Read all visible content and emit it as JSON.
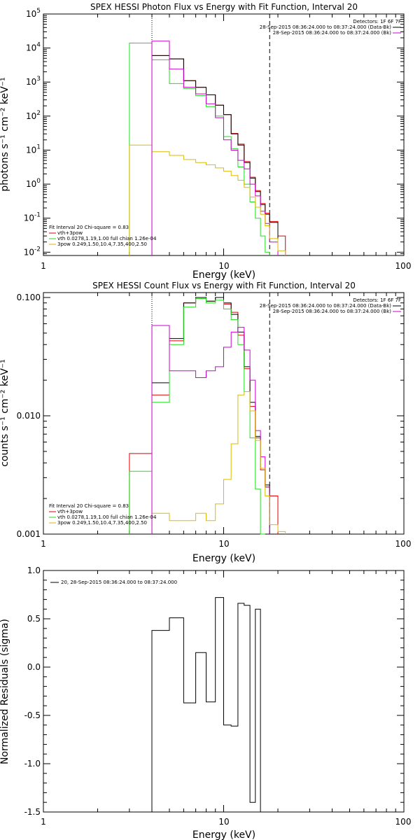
{
  "colors": {
    "black": "#000000",
    "red": "#dd0000",
    "green": "#22dd22",
    "yellow": "#ddbb00",
    "magenta": "#cc00cc"
  },
  "chart_data": [
    {
      "type": "line",
      "step": true,
      "title": "SPEX HESSI Photon Flux vs Energy with Fit Function, Interval 20",
      "xlabel": "Energy (keV)",
      "ylabel": "photons s⁻¹ cm⁻² keV⁻¹",
      "xscale": "log",
      "yscale": "log",
      "xlim": [
        1,
        100
      ],
      "ylim": [
        0.008,
        100000
      ],
      "x_ticks": [
        "1",
        "10",
        "100"
      ],
      "y_ticks": [
        {
          "base": "10",
          "exp": "-2"
        },
        {
          "base": "10",
          "exp": "-1"
        },
        {
          "base": "10",
          "exp": "0"
        },
        {
          "base": "10",
          "exp": "1"
        },
        {
          "base": "10",
          "exp": "2"
        },
        {
          "base": "10",
          "exp": "3"
        },
        {
          "base": "10",
          "exp": "4"
        },
        {
          "base": "10",
          "exp": "5"
        }
      ],
      "legend_top_right": {
        "header": "Detectors: 1F 6F 7F",
        "entries": [
          {
            "text": "28-Sep-2015 08:36:24.000 to 08:37:24.000 (Data-Bk)",
            "color": "#000000"
          },
          {
            "text": "28-Sep-2015 08:36:24.000 to 08:37:24.000 (Bk)",
            "color": "#cc00cc"
          }
        ]
      },
      "legend_bottom_left": {
        "header": "Fit Interval 20   Chi-square = 0.83",
        "entries": [
          {
            "text": "vth+3pow",
            "color": "#dd0000"
          },
          {
            "text": "vth 0.0278,1.19,1.00  full chian 1.26e-04",
            "color": "#22dd22"
          },
          {
            "text": "3pow 0.249,1.50,10.4,7.35,400,2.50",
            "color": "#ddbb00"
          }
        ]
      },
      "vlines": [
        {
          "x": 4.0,
          "style": "dotted",
          "color": "#000000"
        },
        {
          "x": 18.0,
          "style": "dashed",
          "color": "#000000"
        }
      ],
      "edges": [
        3.0,
        4.0,
        5.0,
        6.0,
        7.0,
        8.0,
        9.0,
        10.0,
        11.0,
        12.0,
        13.0,
        14.0,
        15.0,
        16.0,
        17.0,
        18.0,
        20.0,
        22.0
      ],
      "series": [
        {
          "color": "#dd0000",
          "start": 1,
          "values": [
            6000,
            4800,
            1100,
            700,
            420,
            210,
            110,
            31,
            15,
            4.6,
            1.6,
            0.65,
            0.27,
            0.14,
            0.08,
            0.03
          ]
        },
        {
          "color": "#000000",
          "start": 1,
          "values": [
            6000,
            4800,
            1100,
            700,
            420,
            210,
            110,
            30,
            14,
            4.3,
            1.5,
            0.6,
            0.25,
            0.13,
            0.075
          ]
        },
        {
          "color": "#22dd22",
          "start": 0,
          "values": [
            14000,
            4500,
            900,
            650,
            400,
            190,
            100,
            25,
            11,
            3.2,
            1.0,
            0.3,
            0.1,
            0.03,
            0.01
          ]
        },
        {
          "color": "#cc00cc",
          "start": 1,
          "values": [
            16000,
            2400,
            700,
            450,
            230,
            90,
            20,
            10,
            5,
            2.8,
            1.0,
            0.45,
            0.16,
            0.07,
            0.02
          ]
        },
        {
          "color": "#ddbb00",
          "start": 0,
          "values": [
            14,
            9,
            7,
            5.3,
            4.3,
            3.7,
            3.0,
            2.4,
            1.8,
            1.3,
            0.8,
            0.42,
            0.21,
            0.13,
            0.06,
            0.025,
            0.011
          ]
        }
      ]
    },
    {
      "type": "line",
      "step": true,
      "title": "SPEX HESSI Count Flux vs Energy with Fit Function, Interval 20",
      "xlabel": "Energy (keV)",
      "ylabel": "counts s⁻¹ cm⁻² keV⁻¹",
      "xscale": "log",
      "yscale": "log",
      "xlim": [
        1,
        100
      ],
      "ylim": [
        0.001,
        0.11
      ],
      "x_ticks": [
        "1",
        "10",
        "100"
      ],
      "y_ticks": [
        {
          "label": "0.001",
          "value": 0.001
        },
        {
          "label": "0.010",
          "value": 0.01
        },
        {
          "label": "0.100",
          "value": 0.1
        }
      ],
      "legend_top_right": {
        "header": "Detectors: 1F 6F 7F",
        "entries": [
          {
            "text": "28-Sep-2015 08:36:24.000 to 08:37:24.000 (Data-Bk)",
            "color": "#000000"
          },
          {
            "text": "28-Sep-2015 08:36:24.000 to 08:37:24.000 (Bk)",
            "color": "#cc00cc"
          }
        ]
      },
      "legend_bottom_left": {
        "header": "Fit Interval 20   Chi-square = 0.83",
        "entries": [
          {
            "text": "vth+3pow",
            "color": "#dd0000"
          },
          {
            "text": "vth 0.0278,1.19,1.00  full chian 1.26e-04",
            "color": "#22dd22"
          },
          {
            "text": "3pow 0.249,1.50,10.4,7.35,400,2.50",
            "color": "#ddbb00"
          }
        ]
      },
      "vlines": [
        {
          "x": 4.0,
          "style": "dotted",
          "color": "#000000"
        },
        {
          "x": 18.0,
          "style": "dashed",
          "color": "#000000"
        }
      ],
      "edges": [
        3.0,
        4.0,
        5.0,
        6.0,
        7.0,
        8.0,
        9.0,
        10.0,
        11.0,
        12.0,
        13.0,
        14.0,
        15.0,
        16.0,
        17.0,
        18.0,
        20.0,
        22.0
      ],
      "series": [
        {
          "color": "#dd0000",
          "start": 0,
          "values": [
            0.0048,
            0.015,
            0.043,
            0.09,
            0.1,
            0.093,
            0.1,
            0.088,
            0.075,
            0.048,
            0.025,
            0.012,
            0.0065,
            0.0035,
            0.0025,
            0.0021
          ]
        },
        {
          "color": "#000000",
          "start": 1,
          "values": [
            0.019,
            0.045,
            0.09,
            0.1,
            0.093,
            0.1,
            0.09,
            0.072,
            0.051,
            0.026,
            0.013,
            0.0067,
            0.0036,
            0.0026
          ]
        },
        {
          "color": "#22dd22",
          "start": 0,
          "values": [
            0.0034,
            0.013,
            0.04,
            0.083,
            0.098,
            0.09,
            0.095,
            0.08,
            0.065,
            0.04,
            0.016,
            0.0065,
            0.0024,
            0.001
          ]
        },
        {
          "color": "#cc00cc",
          "start": 1,
          "values": [
            0.058,
            0.024,
            0.024,
            0.021,
            0.024,
            0.026,
            0.038,
            0.051,
            0.056,
            0.036,
            0.02,
            0.0075,
            0.0045,
            0.0025
          ]
        },
        {
          "color": "#ddbb00",
          "start": 1,
          "values": [
            0.0015,
            0.0013,
            0.0013,
            0.0015,
            0.0013,
            0.0018,
            0.0029,
            0.0058,
            0.015,
            0.016,
            0.011,
            0.0062,
            0.0036,
            0.0021,
            0.0012,
            0.00105
          ]
        }
      ]
    },
    {
      "type": "line",
      "step": true,
      "title": "",
      "xlabel": "Energy (keV)",
      "ylabel": "Normalized Residuals (sigma)",
      "xscale": "log",
      "yscale": "linear",
      "xlim": [
        1,
        100
      ],
      "ylim": [
        -1.5,
        1.0
      ],
      "x_ticks": [
        "1",
        "10",
        "100"
      ],
      "y_ticks": [
        {
          "label": "1.0",
          "value": 1.0
        },
        {
          "label": "0.5",
          "value": 0.5
        },
        {
          "label": "0.0",
          "value": 0.0
        },
        {
          "label": "-0.5",
          "value": -0.5
        },
        {
          "label": "-1.0",
          "value": -1.0
        },
        {
          "label": "-1.5",
          "value": -1.5
        }
      ],
      "legend": {
        "text": "20, 28-Sep-2015 08:36:24.000 to 08:37:24.000",
        "color": "#000000"
      },
      "edges": [
        4.0,
        5.0,
        6.0,
        7.0,
        8.0,
        9.0,
        10.0,
        11.0,
        12.0,
        13.0,
        14.0,
        15.0,
        16.0,
        17.0,
        18.0
      ],
      "series": [
        {
          "color": "#000000",
          "start": 0,
          "values": [
            0.38,
            0.51,
            -0.37,
            0.15,
            -0.36,
            0.72,
            -0.6,
            -0.61,
            0.66,
            0.64,
            -1.4,
            0.6
          ]
        }
      ]
    }
  ]
}
